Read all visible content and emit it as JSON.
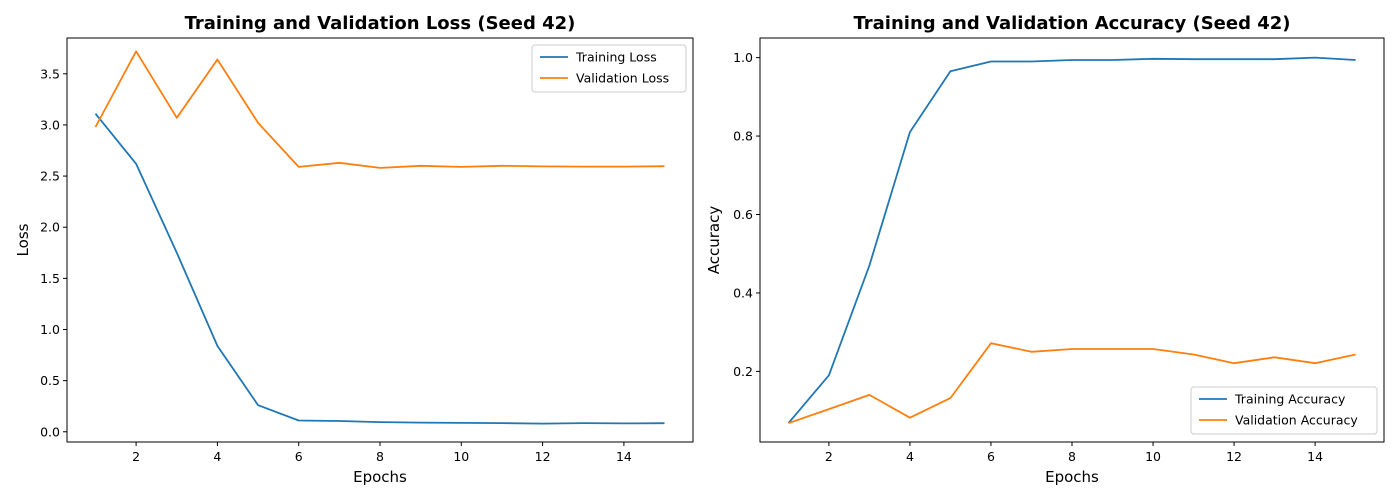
{
  "chart_data": [
    {
      "type": "line",
      "title": "Training and Validation Loss (Seed 42)",
      "xlabel": "Epochs",
      "ylabel": "Loss",
      "x": [
        1,
        2,
        3,
        4,
        5,
        6,
        7,
        8,
        9,
        10,
        11,
        12,
        13,
        14,
        15
      ],
      "xlim": [
        0.3,
        15.7
      ],
      "ylim": [
        -0.1,
        3.85
      ],
      "xticks": [
        2,
        4,
        6,
        8,
        10,
        12,
        14
      ],
      "yticks": [
        0.0,
        0.5,
        1.0,
        1.5,
        2.0,
        2.5,
        3.0,
        3.5
      ],
      "ytick_labels": [
        "0.0",
        "0.5",
        "1.0",
        "1.5",
        "2.0",
        "2.5",
        "3.0",
        "3.5"
      ],
      "legend_position": "top-right",
      "grid": false,
      "series": [
        {
          "name": "Training Loss",
          "color": "#1f77b4",
          "values": [
            3.11,
            2.62,
            1.75,
            0.84,
            0.26,
            0.11,
            0.105,
            0.095,
            0.09,
            0.087,
            0.085,
            0.08,
            0.085,
            0.082,
            0.084
          ]
        },
        {
          "name": "Validation Loss",
          "color": "#ff7f0e",
          "values": [
            2.98,
            3.72,
            3.07,
            3.64,
            3.02,
            2.59,
            2.63,
            2.58,
            2.6,
            2.59,
            2.6,
            2.595,
            2.593,
            2.593,
            2.597
          ]
        }
      ]
    },
    {
      "type": "line",
      "title": "Training and Validation Accuracy (Seed 42)",
      "xlabel": "Epochs",
      "ylabel": "Accuracy",
      "x": [
        1,
        2,
        3,
        4,
        5,
        6,
        7,
        8,
        9,
        10,
        11,
        12,
        13,
        14,
        15
      ],
      "xlim": [
        0.3,
        15.7
      ],
      "ylim": [
        0.02,
        1.05
      ],
      "xticks": [
        2,
        4,
        6,
        8,
        10,
        12,
        14
      ],
      "yticks": [
        0.2,
        0.4,
        0.6,
        0.8,
        1.0
      ],
      "ytick_labels": [
        "0.2",
        "0.4",
        "0.6",
        "0.8",
        "1.0"
      ],
      "legend_position": "lower-right",
      "grid": false,
      "series": [
        {
          "name": "Training Accuracy",
          "color": "#1f77b4",
          "values": [
            0.068,
            0.19,
            0.47,
            0.81,
            0.965,
            0.99,
            0.99,
            0.994,
            0.994,
            0.997,
            0.996,
            0.996,
            0.996,
            1.0,
            0.994
          ]
        },
        {
          "name": "Validation Accuracy",
          "color": "#ff7f0e",
          "values": [
            0.068,
            0.104,
            0.14,
            0.082,
            0.132,
            0.272,
            0.25,
            0.257,
            0.257,
            0.257,
            0.243,
            0.221,
            0.236,
            0.221,
            0.243
          ]
        }
      ]
    }
  ]
}
